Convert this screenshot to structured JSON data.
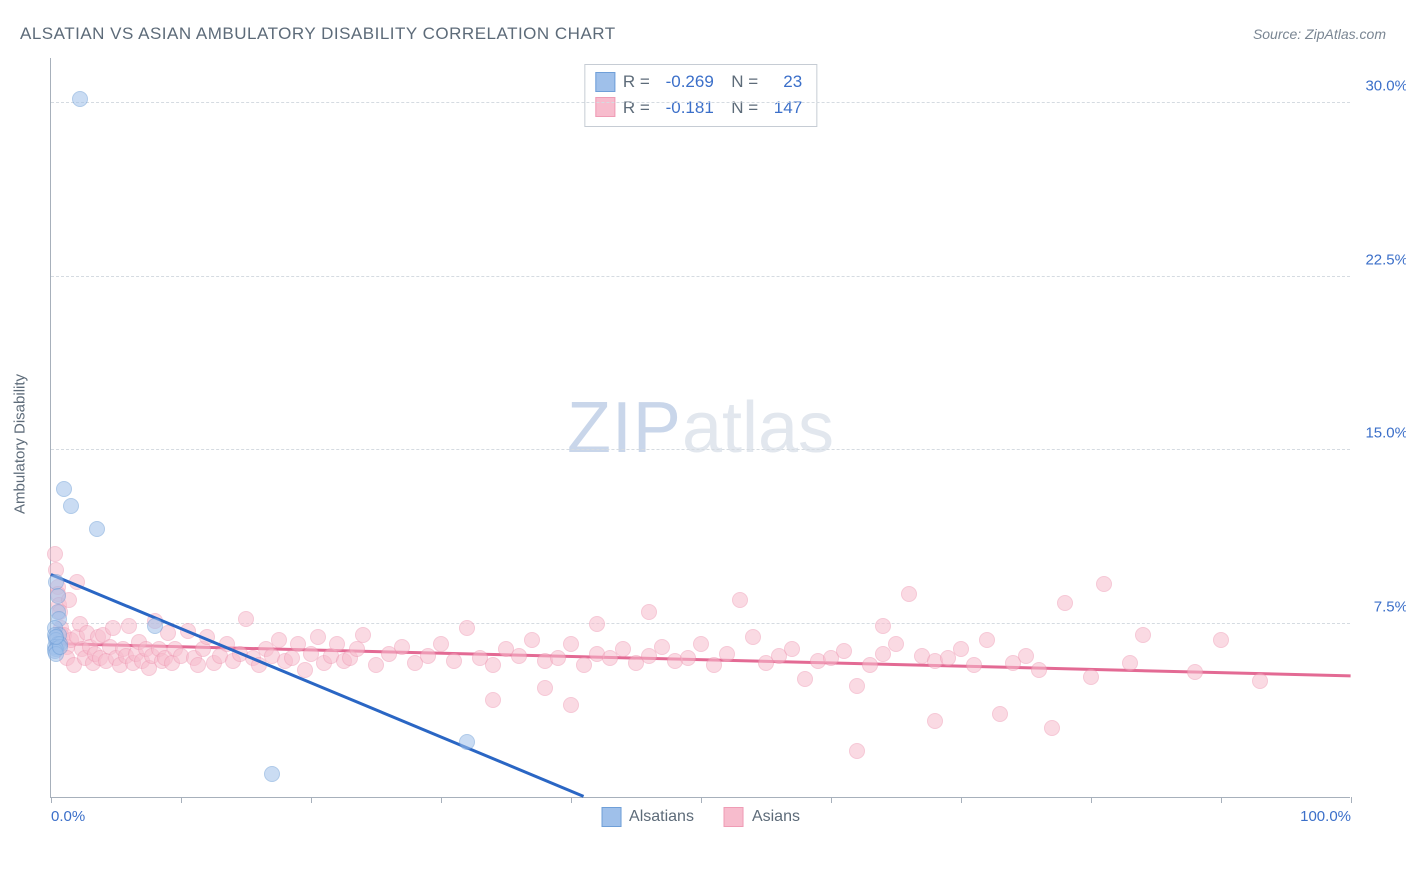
{
  "title": "ALSATIAN VS ASIAN AMBULATORY DISABILITY CORRELATION CHART",
  "source": "Source: ZipAtlas.com",
  "y_axis_title": "Ambulatory Disability",
  "watermark": {
    "a": "ZIP",
    "b": "atlas"
  },
  "chart": {
    "type": "scatter",
    "xlim": [
      0,
      100
    ],
    "ylim": [
      0,
      32
    ],
    "ytick_values": [
      7.5,
      15.0,
      22.5,
      30.0
    ],
    "ytick_labels": [
      "7.5%",
      "15.0%",
      "22.5%",
      "30.0%"
    ],
    "xtick_values": [
      0,
      10,
      20,
      30,
      40,
      50,
      60,
      70,
      80,
      90,
      100
    ],
    "xtick_labels_shown": {
      "0": "0.0%",
      "100": "100.0%"
    },
    "background_color": "#ffffff",
    "grid_color": "#d5dbe1",
    "axis_color": "#a7b0bb",
    "marker_radius": 8,
    "marker_opacity": 0.55,
    "series": {
      "alsatians": {
        "label": "Alsatians",
        "fill": "#9fc0ea",
        "stroke": "#6f9fd8",
        "trend_color": "#2a66c4",
        "R": "-0.269",
        "N": "23",
        "trend": {
          "x1": 0,
          "y1": 9.6,
          "x2": 41,
          "y2": 0
        },
        "points": [
          [
            2.2,
            30.2
          ],
          [
            1.0,
            13.3
          ],
          [
            1.5,
            12.6
          ],
          [
            3.5,
            11.6
          ],
          [
            0.4,
            9.3
          ],
          [
            0.5,
            8.7
          ],
          [
            0.5,
            8.0
          ],
          [
            0.6,
            7.7
          ],
          [
            0.3,
            7.3
          ],
          [
            0.6,
            7.0
          ],
          [
            0.3,
            7.0
          ],
          [
            0.4,
            6.8
          ],
          [
            0.5,
            6.6
          ],
          [
            0.7,
            6.6
          ],
          [
            0.3,
            6.5
          ],
          [
            0.4,
            6.4
          ],
          [
            0.3,
            6.3
          ],
          [
            0.4,
            6.2
          ],
          [
            0.7,
            6.5
          ],
          [
            8.0,
            7.4
          ],
          [
            17.0,
            1.0
          ],
          [
            32.0,
            2.4
          ],
          [
            0.4,
            6.9
          ]
        ]
      },
      "asians": {
        "label": "Asians",
        "fill": "#f7bccd",
        "stroke": "#ef9cb5",
        "trend_color": "#e36a94",
        "R": "-0.181",
        "N": "147",
        "trend": {
          "x1": 0,
          "y1": 6.6,
          "x2": 100,
          "y2": 5.2
        },
        "points": [
          [
            0.3,
            10.5
          ],
          [
            0.4,
            9.8
          ],
          [
            0.5,
            9.1
          ],
          [
            0.5,
            8.8
          ],
          [
            0.6,
            8.3
          ],
          [
            0.7,
            8.0
          ],
          [
            0.8,
            7.3
          ],
          [
            0.8,
            7.0
          ],
          [
            1.0,
            7.0
          ],
          [
            1.2,
            6.5
          ],
          [
            1.2,
            6.0
          ],
          [
            1.4,
            8.5
          ],
          [
            1.5,
            6.8
          ],
          [
            1.8,
            5.7
          ],
          [
            2.0,
            9.3
          ],
          [
            2.0,
            6.9
          ],
          [
            2.2,
            7.5
          ],
          [
            2.4,
            6.4
          ],
          [
            2.6,
            6.0
          ],
          [
            2.8,
            7.1
          ],
          [
            3.0,
            6.5
          ],
          [
            3.2,
            5.8
          ],
          [
            3.4,
            6.2
          ],
          [
            3.6,
            6.9
          ],
          [
            3.8,
            6.0
          ],
          [
            4.0,
            7.0
          ],
          [
            4.2,
            5.9
          ],
          [
            4.5,
            6.5
          ],
          [
            4.8,
            7.3
          ],
          [
            5.0,
            6.0
          ],
          [
            5.3,
            5.7
          ],
          [
            5.5,
            6.4
          ],
          [
            5.8,
            6.1
          ],
          [
            6.0,
            7.4
          ],
          [
            6.3,
            5.8
          ],
          [
            6.5,
            6.2
          ],
          [
            6.8,
            6.7
          ],
          [
            7.0,
            5.9
          ],
          [
            7.3,
            6.4
          ],
          [
            7.5,
            5.6
          ],
          [
            7.8,
            6.1
          ],
          [
            8.0,
            7.6
          ],
          [
            8.3,
            6.4
          ],
          [
            8.5,
            5.9
          ],
          [
            8.8,
            6.0
          ],
          [
            9.0,
            7.1
          ],
          [
            9.3,
            5.8
          ],
          [
            9.5,
            6.4
          ],
          [
            10.0,
            6.1
          ],
          [
            10.5,
            7.2
          ],
          [
            11.0,
            6.0
          ],
          [
            11.3,
            5.7
          ],
          [
            11.7,
            6.4
          ],
          [
            12.0,
            6.9
          ],
          [
            12.5,
            5.8
          ],
          [
            13.0,
            6.1
          ],
          [
            13.5,
            6.6
          ],
          [
            14.0,
            5.9
          ],
          [
            14.5,
            6.2
          ],
          [
            15.0,
            7.7
          ],
          [
            15.5,
            6.0
          ],
          [
            16.0,
            5.7
          ],
          [
            16.5,
            6.4
          ],
          [
            17.0,
            6.1
          ],
          [
            17.5,
            6.8
          ],
          [
            18.0,
            5.9
          ],
          [
            18.5,
            6.0
          ],
          [
            19.0,
            6.6
          ],
          [
            19.5,
            5.5
          ],
          [
            20.0,
            6.2
          ],
          [
            20.5,
            6.9
          ],
          [
            21.0,
            5.8
          ],
          [
            21.5,
            6.1
          ],
          [
            22.0,
            6.6
          ],
          [
            22.5,
            5.9
          ],
          [
            23.0,
            6.0
          ],
          [
            23.5,
            6.4
          ],
          [
            24.0,
            7.0
          ],
          [
            25.0,
            5.7
          ],
          [
            26.0,
            6.2
          ],
          [
            27.0,
            6.5
          ],
          [
            28.0,
            5.8
          ],
          [
            29.0,
            6.1
          ],
          [
            30.0,
            6.6
          ],
          [
            31.0,
            5.9
          ],
          [
            32.0,
            7.3
          ],
          [
            33.0,
            6.0
          ],
          [
            34.0,
            5.7
          ],
          [
            34.0,
            4.2
          ],
          [
            35.0,
            6.4
          ],
          [
            36.0,
            6.1
          ],
          [
            37.0,
            6.8
          ],
          [
            38.0,
            5.9
          ],
          [
            38.0,
            4.7
          ],
          [
            39.0,
            6.0
          ],
          [
            40.0,
            6.6
          ],
          [
            40.0,
            4.0
          ],
          [
            41.0,
            5.7
          ],
          [
            42.0,
            6.2
          ],
          [
            42.0,
            7.5
          ],
          [
            43.0,
            6.0
          ],
          [
            44.0,
            6.4
          ],
          [
            45.0,
            5.8
          ],
          [
            46.0,
            6.1
          ],
          [
            46.0,
            8.0
          ],
          [
            47.0,
            6.5
          ],
          [
            48.0,
            5.9
          ],
          [
            49.0,
            6.0
          ],
          [
            50.0,
            6.6
          ],
          [
            51.0,
            5.7
          ],
          [
            52.0,
            6.2
          ],
          [
            53.0,
            8.5
          ],
          [
            54.0,
            6.9
          ],
          [
            55.0,
            5.8
          ],
          [
            56.0,
            6.1
          ],
          [
            57.0,
            6.4
          ],
          [
            58.0,
            5.1
          ],
          [
            59.0,
            5.9
          ],
          [
            60.0,
            6.0
          ],
          [
            61.0,
            6.3
          ],
          [
            62.0,
            4.8
          ],
          [
            62.0,
            2.0
          ],
          [
            63.0,
            5.7
          ],
          [
            64.0,
            6.2
          ],
          [
            64.0,
            7.4
          ],
          [
            65.0,
            6.6
          ],
          [
            66.0,
            8.8
          ],
          [
            67.0,
            6.1
          ],
          [
            68.0,
            5.9
          ],
          [
            68.0,
            3.3
          ],
          [
            69.0,
            6.0
          ],
          [
            70.0,
            6.4
          ],
          [
            71.0,
            5.7
          ],
          [
            72.0,
            6.8
          ],
          [
            73.0,
            3.6
          ],
          [
            74.0,
            5.8
          ],
          [
            75.0,
            6.1
          ],
          [
            76.0,
            5.5
          ],
          [
            77.0,
            3.0
          ],
          [
            78.0,
            8.4
          ],
          [
            80.0,
            5.2
          ],
          [
            81.0,
            9.2
          ],
          [
            83.0,
            5.8
          ],
          [
            84.0,
            7.0
          ],
          [
            88.0,
            5.4
          ],
          [
            90.0,
            6.8
          ],
          [
            93.0,
            5.0
          ]
        ]
      }
    }
  }
}
